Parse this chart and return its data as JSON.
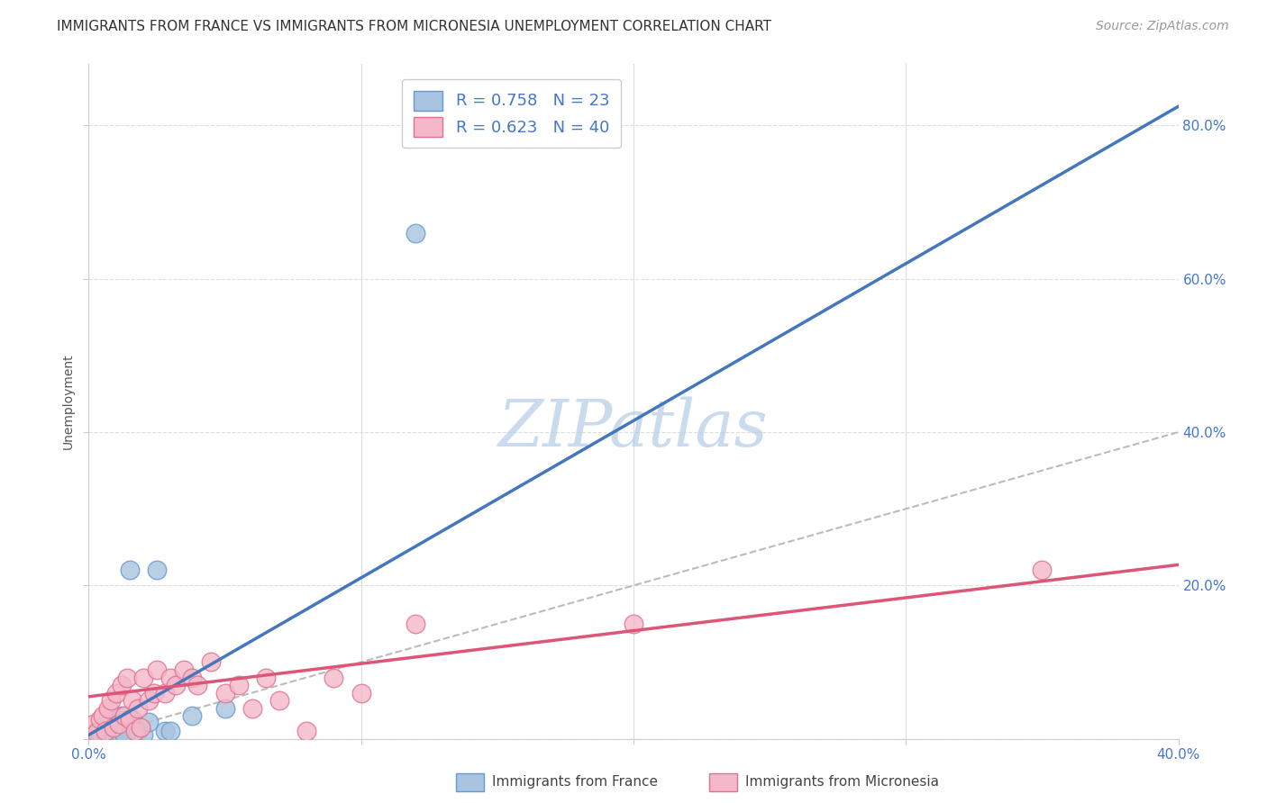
{
  "title": "IMMIGRANTS FROM FRANCE VS IMMIGRANTS FROM MICRONESIA UNEMPLOYMENT CORRELATION CHART",
  "source": "Source: ZipAtlas.com",
  "ylabel": "Unemployment",
  "xlabel": "",
  "xlim": [
    0.0,
    0.4
  ],
  "ylim": [
    0.0,
    0.88
  ],
  "yticks": [
    0.0,
    0.2,
    0.4,
    0.6,
    0.8
  ],
  "xticks": [
    0.0,
    0.1,
    0.2,
    0.3,
    0.4
  ],
  "xtick_labels_show": [
    "0.0%",
    "",
    "",
    "",
    "40.0%"
  ],
  "ytick_labels_right": [
    "",
    "20.0%",
    "40.0%",
    "60.0%",
    "80.0%"
  ],
  "watermark": "ZIPatlas",
  "france_color": "#a8c4e0",
  "france_edge_color": "#6699cc",
  "micronesia_color": "#f4b8c8",
  "micronesia_edge_color": "#e07090",
  "france_line_color": "#4477bb",
  "micronesia_line_color": "#dd5577",
  "diagonal_color": "#bbbbbb",
  "R_france": 0.758,
  "N_france": 23,
  "R_micronesia": 0.623,
  "N_micronesia": 40,
  "france_scatter_x": [
    0.002,
    0.003,
    0.004,
    0.005,
    0.006,
    0.007,
    0.008,
    0.009,
    0.01,
    0.011,
    0.012,
    0.013,
    0.015,
    0.016,
    0.018,
    0.02,
    0.022,
    0.025,
    0.028,
    0.03,
    0.038,
    0.05,
    0.12
  ],
  "france_scatter_y": [
    0.005,
    0.01,
    0.008,
    0.015,
    0.005,
    0.02,
    0.01,
    0.005,
    0.025,
    0.008,
    0.03,
    0.005,
    0.22,
    0.025,
    0.01,
    0.005,
    0.022,
    0.22,
    0.01,
    0.01,
    0.03,
    0.04,
    0.66
  ],
  "micronesia_scatter_x": [
    0.002,
    0.003,
    0.004,
    0.005,
    0.006,
    0.007,
    0.008,
    0.009,
    0.01,
    0.011,
    0.012,
    0.013,
    0.014,
    0.015,
    0.016,
    0.017,
    0.018,
    0.019,
    0.02,
    0.022,
    0.024,
    0.025,
    0.028,
    0.03,
    0.032,
    0.035,
    0.038,
    0.04,
    0.045,
    0.05,
    0.055,
    0.06,
    0.065,
    0.07,
    0.08,
    0.09,
    0.1,
    0.12,
    0.2,
    0.35
  ],
  "micronesia_scatter_y": [
    0.02,
    0.008,
    0.025,
    0.03,
    0.01,
    0.04,
    0.05,
    0.015,
    0.06,
    0.02,
    0.07,
    0.03,
    0.08,
    0.025,
    0.05,
    0.01,
    0.04,
    0.015,
    0.08,
    0.05,
    0.06,
    0.09,
    0.06,
    0.08,
    0.07,
    0.09,
    0.08,
    0.07,
    0.1,
    0.06,
    0.07,
    0.04,
    0.08,
    0.05,
    0.01,
    0.08,
    0.06,
    0.15,
    0.15,
    0.22
  ],
  "france_slope": 2.05,
  "france_intercept": 0.005,
  "micronesia_slope": 0.43,
  "micronesia_intercept": 0.055,
  "grid_color": "#dddddd",
  "background_color": "#ffffff",
  "title_fontsize": 11,
  "axis_label_fontsize": 10,
  "tick_fontsize": 11,
  "legend_fontsize": 13,
  "watermark_fontsize": 52,
  "source_fontsize": 10,
  "tick_color": "#4477cc"
}
